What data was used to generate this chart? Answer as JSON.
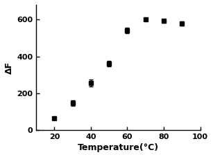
{
  "x": [
    20,
    30,
    40,
    50,
    60,
    70,
    80,
    90
  ],
  "y": [
    65,
    145,
    255,
    360,
    540,
    600,
    592,
    578
  ],
  "yerr": [
    8,
    15,
    18,
    15,
    15,
    8,
    8,
    12
  ],
  "xlabel": "Temperature(°C)",
  "ylabel": "ΔF",
  "xlim": [
    10,
    100
  ],
  "ylim": [
    0,
    680
  ],
  "xticks": [
    20,
    40,
    60,
    80,
    100
  ],
  "yticks": [
    0,
    200,
    400,
    600
  ],
  "marker": "s",
  "marker_color": "#000000",
  "marker_size": 4,
  "capsize": 2,
  "elinewidth": 1.0,
  "background_color": "#ffffff"
}
